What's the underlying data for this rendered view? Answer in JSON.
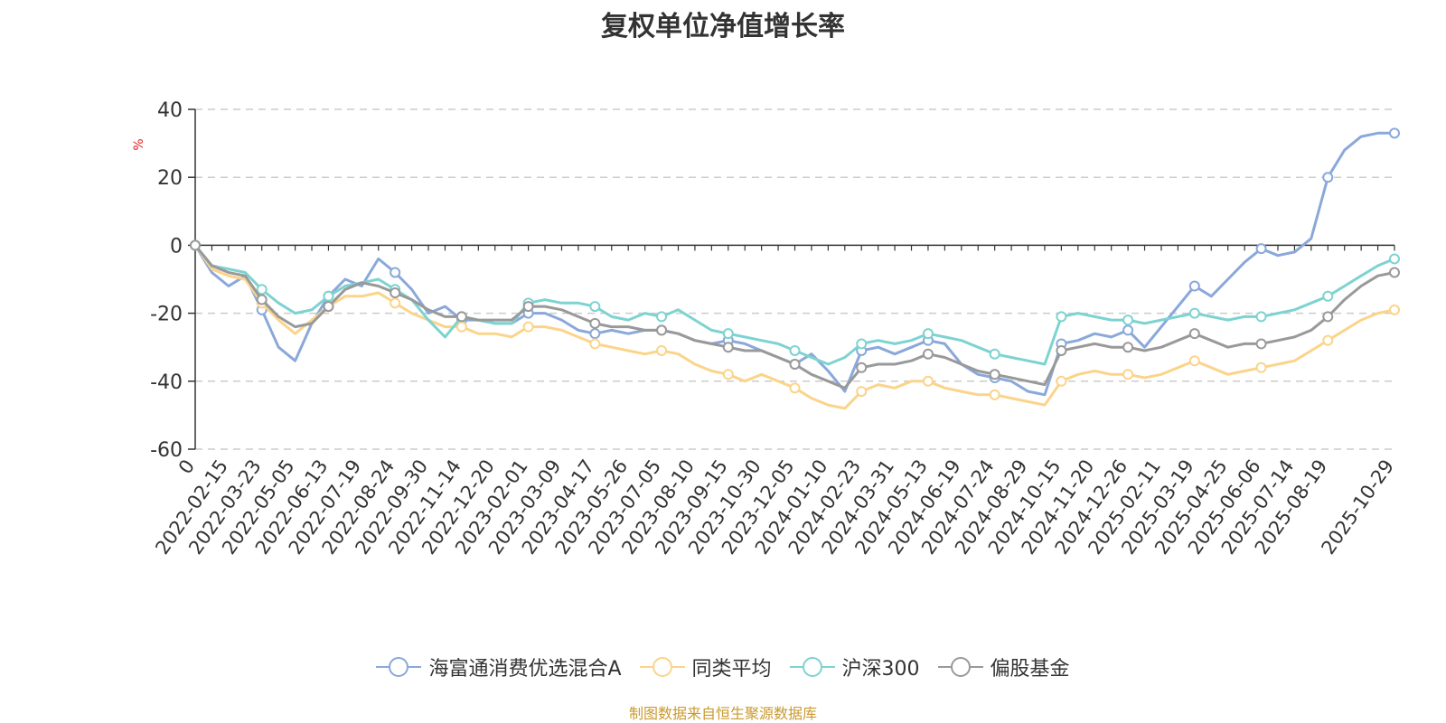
{
  "chart_data": {
    "type": "line",
    "title": "复权单位净值增长率",
    "ylabel": "%",
    "ylim": [
      -60,
      40
    ],
    "yticks": [
      40,
      20,
      0,
      -20,
      -40,
      -60
    ],
    "grid": true,
    "legend_position": "bottom",
    "x_tick_labels": [
      "0",
      "2022-02-15",
      "2022-03-23",
      "2022-05-05",
      "2022-06-13",
      "2022-07-19",
      "2022-08-24",
      "2022-09-30",
      "2022-11-14",
      "2022-12-20",
      "2023-02-01",
      "2023-03-09",
      "2023-04-17",
      "2023-05-26",
      "2023-07-05",
      "2023-08-10",
      "2023-09-15",
      "2023-10-30",
      "2023-12-05",
      "2024-01-10",
      "2024-02-23",
      "2024-03-31",
      "2024-05-13",
      "2024-06-19",
      "2024-07-24",
      "2024-08-29",
      "2024-10-15",
      "2024-11-20",
      "2024-12-26",
      "2025-02-11",
      "2025-03-19",
      "2025-04-25",
      "2025-06-06",
      "2025-07-14",
      "2025-08-19",
      "2025-10-29"
    ],
    "x_tick_index": [
      0,
      2,
      4,
      6,
      8,
      10,
      12,
      14,
      16,
      18,
      20,
      22,
      24,
      26,
      28,
      30,
      32,
      34,
      36,
      38,
      40,
      42,
      44,
      46,
      48,
      50,
      52,
      54,
      56,
      58,
      60,
      62,
      64,
      66,
      68,
      72
    ],
    "x": [
      0,
      1,
      2,
      3,
      4,
      5,
      6,
      7,
      8,
      9,
      10,
      11,
      12,
      13,
      14,
      15,
      16,
      17,
      18,
      19,
      20,
      21,
      22,
      23,
      24,
      25,
      26,
      27,
      28,
      29,
      30,
      31,
      32,
      33,
      34,
      35,
      36,
      37,
      38,
      39,
      40,
      41,
      42,
      43,
      44,
      45,
      46,
      47,
      48,
      49,
      50,
      51,
      52,
      53,
      54,
      55,
      56,
      57,
      58,
      59,
      60,
      61,
      62,
      63,
      64,
      65,
      66,
      67,
      68,
      69,
      70,
      71,
      72
    ],
    "series": [
      {
        "name": "海富通消费优选混合A",
        "color": "#8aa8da",
        "values": [
          0,
          -8,
          -12,
          -9,
          -19,
          -30,
          -34,
          -23,
          -15,
          -10,
          -12,
          -4,
          -8,
          -13,
          -20,
          -18,
          -22,
          -22,
          -23,
          -23,
          -20,
          -20,
          -22,
          -25,
          -26,
          -25,
          -26,
          -25,
          -25,
          -26,
          -28,
          -29,
          -28,
          -29,
          -31,
          -33,
          -35,
          -32,
          -37,
          -43,
          -31,
          -30,
          -32,
          -30,
          -28,
          -29,
          -35,
          -38,
          -39,
          -40,
          -43,
          -44,
          -29,
          -28,
          -26,
          -27,
          -25,
          -30,
          -24,
          -18,
          -12,
          -15,
          -10,
          -5,
          -1,
          -3,
          -2,
          2,
          20,
          28,
          32,
          33,
          33
        ]
      },
      {
        "name": "同类平均",
        "color": "#fbd48a",
        "values": [
          0,
          -7,
          -9,
          -10,
          -17,
          -22,
          -26,
          -22,
          -18,
          -15,
          -15,
          -14,
          -17,
          -20,
          -22,
          -24,
          -24,
          -26,
          -26,
          -27,
          -24,
          -24,
          -25,
          -27,
          -29,
          -30,
          -31,
          -32,
          -31,
          -32,
          -35,
          -37,
          -38,
          -40,
          -38,
          -40,
          -42,
          -45,
          -47,
          -48,
          -43,
          -41,
          -42,
          -40,
          -40,
          -42,
          -43,
          -44,
          -44,
          -45,
          -46,
          -47,
          -40,
          -38,
          -37,
          -38,
          -38,
          -39,
          -38,
          -36,
          -34,
          -36,
          -38,
          -37,
          -36,
          -35,
          -34,
          -31,
          -28,
          -25,
          -22,
          -20,
          -19
        ]
      },
      {
        "name": "沪深300",
        "color": "#7dd3d1",
        "values": [
          0,
          -6,
          -7,
          -8,
          -13,
          -17,
          -20,
          -19,
          -15,
          -12,
          -11,
          -10,
          -13,
          -16,
          -22,
          -27,
          -21,
          -22,
          -23,
          -23,
          -17,
          -16,
          -17,
          -17,
          -18,
          -21,
          -22,
          -20,
          -21,
          -19,
          -22,
          -25,
          -26,
          -27,
          -28,
          -29,
          -31,
          -33,
          -35,
          -33,
          -29,
          -28,
          -29,
          -28,
          -26,
          -27,
          -28,
          -30,
          -32,
          -33,
          -34,
          -35,
          -21,
          -20,
          -21,
          -22,
          -22,
          -23,
          -22,
          -21,
          -20,
          -21,
          -22,
          -21,
          -21,
          -20,
          -19,
          -17,
          -15,
          -12,
          -9,
          -6,
          -4
        ]
      },
      {
        "name": "偏股基金",
        "color": "#999999",
        "values": [
          0,
          -6,
          -8,
          -9,
          -16,
          -21,
          -24,
          -23,
          -18,
          -13,
          -11,
          -12,
          -14,
          -16,
          -19,
          -21,
          -21,
          -22,
          -22,
          -22,
          -18,
          -18,
          -19,
          -21,
          -23,
          -24,
          -24,
          -25,
          -25,
          -26,
          -28,
          -29,
          -30,
          -31,
          -31,
          -33,
          -35,
          -38,
          -40,
          -42,
          -36,
          -35,
          -35,
          -34,
          -32,
          -33,
          -35,
          -37,
          -38,
          -39,
          -40,
          -41,
          -31,
          -30,
          -29,
          -30,
          -30,
          -31,
          -30,
          -28,
          -26,
          -28,
          -30,
          -29,
          -29,
          -28,
          -27,
          -25,
          -21,
          -16,
          -12,
          -9,
          -8
        ]
      }
    ]
  },
  "source": "制图数据来自恒生聚源数据库"
}
